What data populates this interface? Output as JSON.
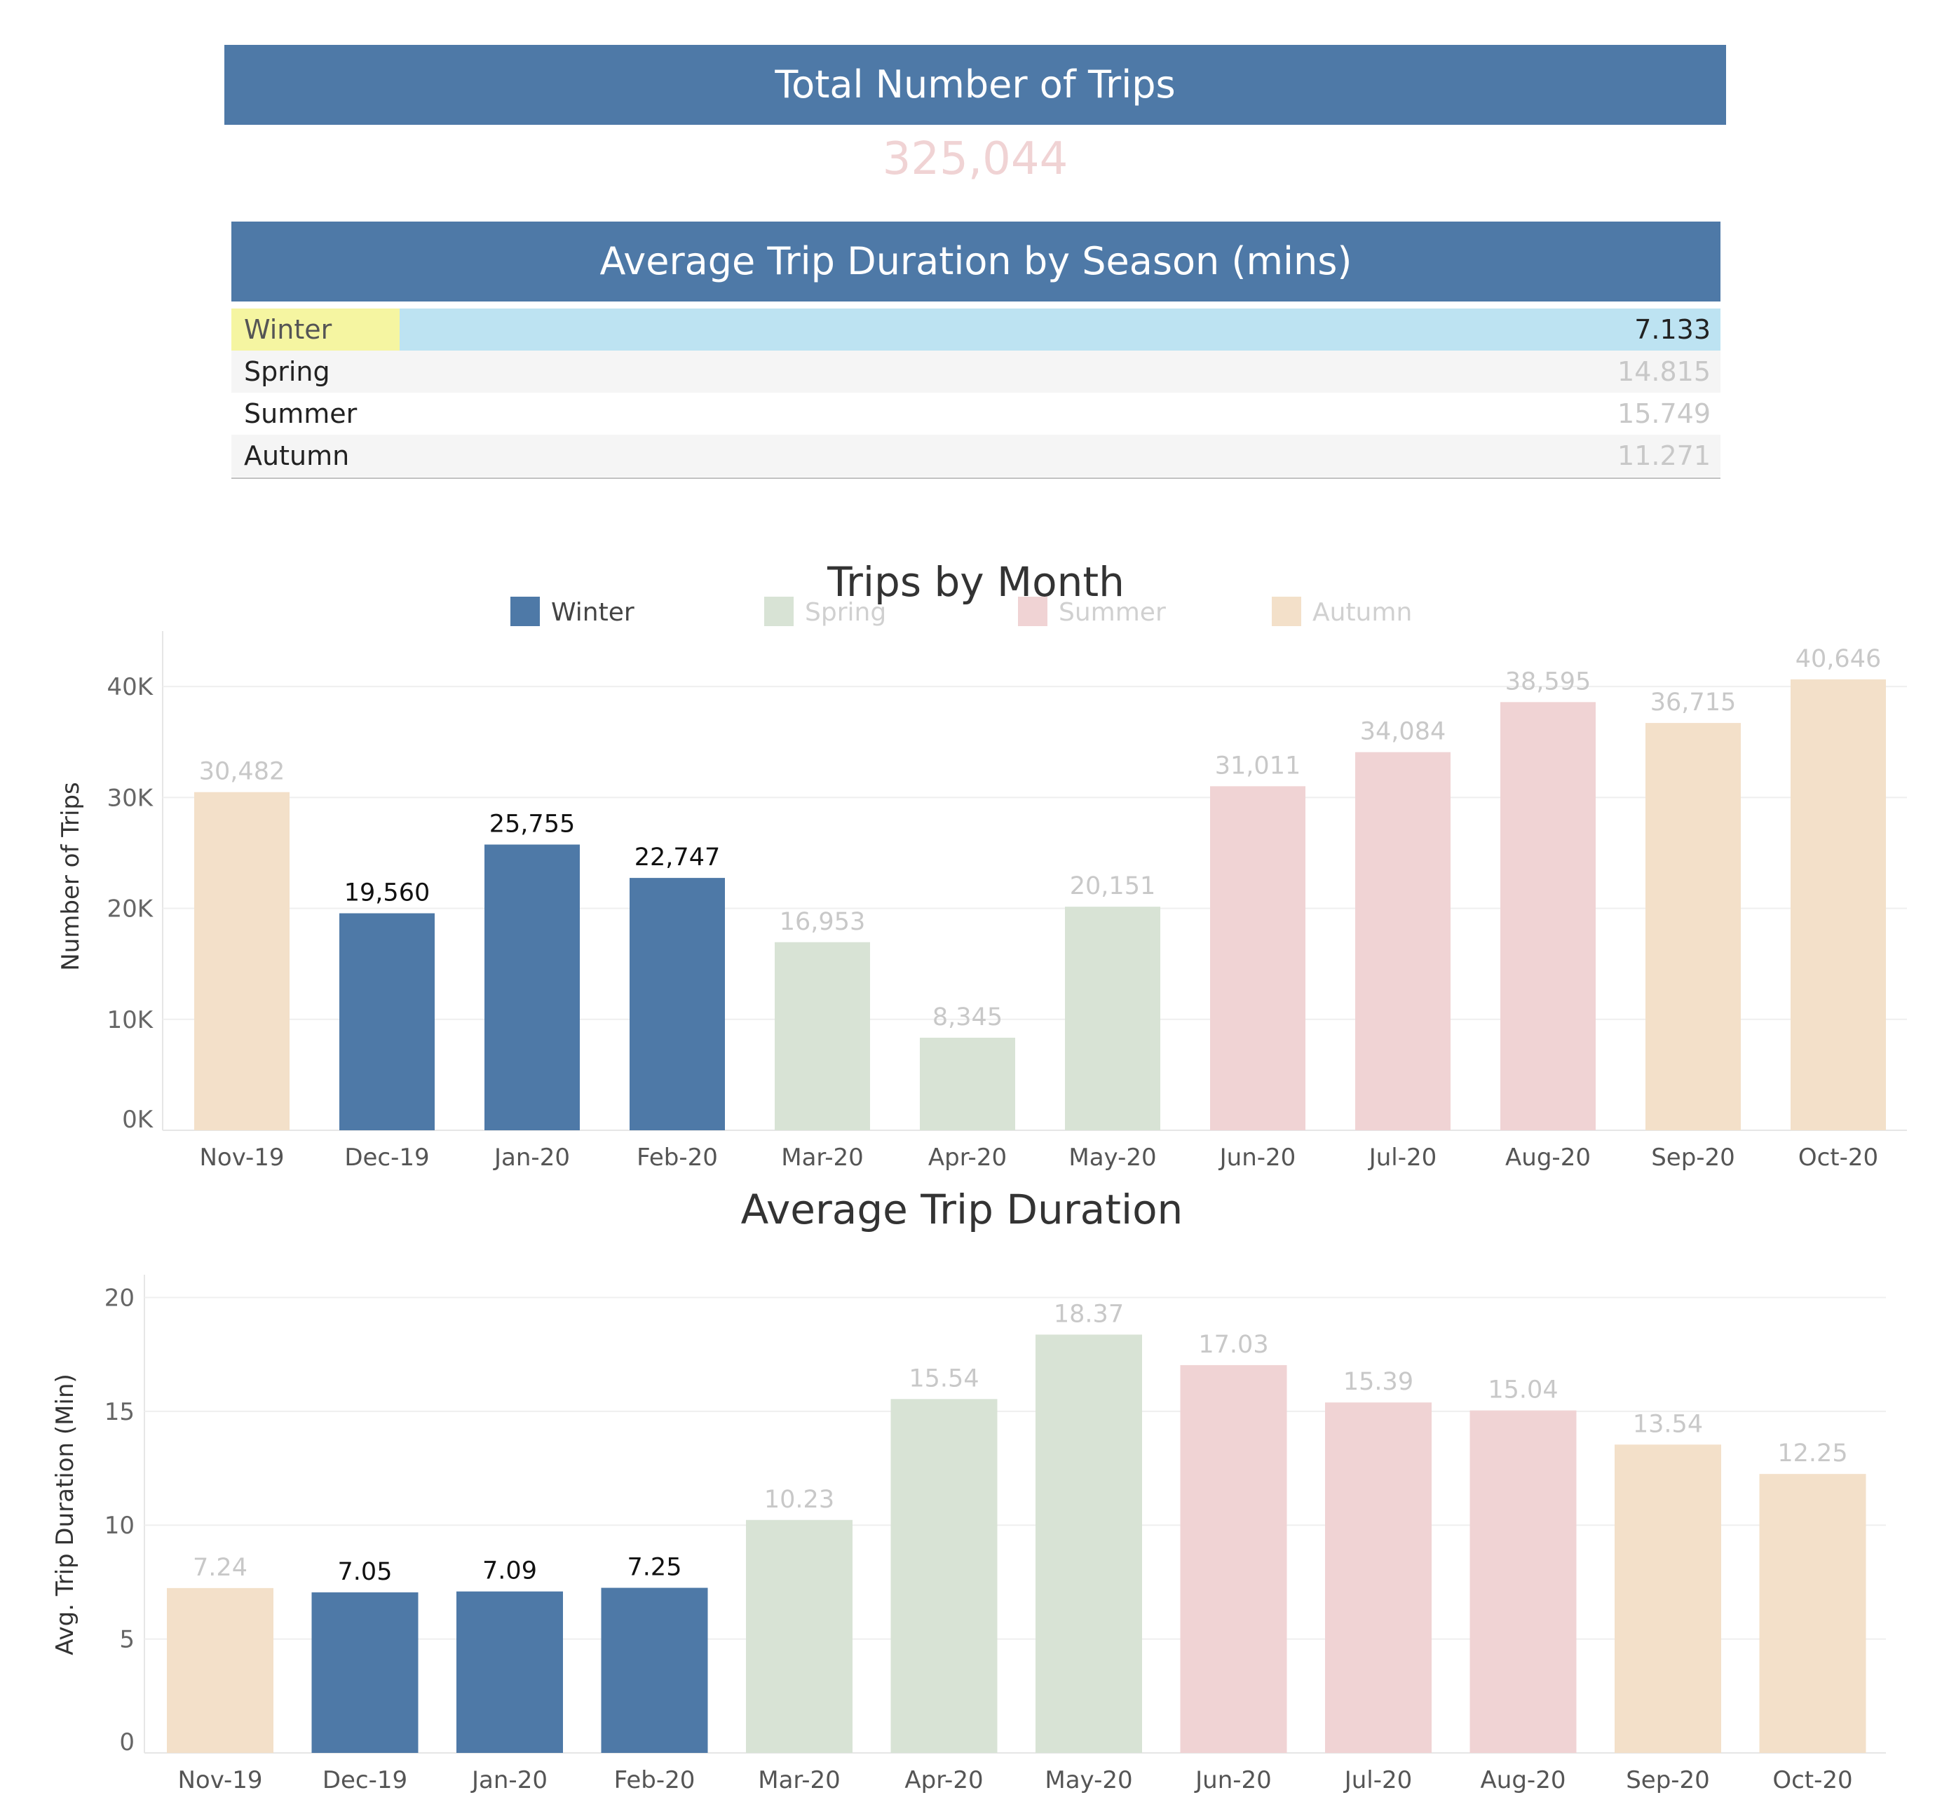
{
  "kpi": {
    "title": "Total Number of Trips",
    "value": "325,044"
  },
  "season_table": {
    "title": "Average Trip Duration by Season (mins)",
    "rows": [
      {
        "season": "Winter",
        "value": "7.133"
      },
      {
        "season": "Spring",
        "value": "14.815"
      },
      {
        "season": "Summer",
        "value": "15.749"
      },
      {
        "season": "Autumn",
        "value": "11.271"
      }
    ]
  },
  "colors": {
    "Winter": "#4e79a7",
    "Spring": "#d8e3d5",
    "Summer": "#f0d3d4",
    "Autumn": "#f3e0c9",
    "highlight_label": "#111111",
    "faded_label": "#c8c8c8"
  },
  "chart_data": [
    {
      "type": "bar",
      "title": "Trips by Month",
      "ylabel": "Number of Trips",
      "ylim": [
        0,
        45000
      ],
      "yticks": [
        "0K",
        "10K",
        "20K",
        "30K",
        "40K"
      ],
      "legend": {
        "placement": "top",
        "entries": [
          "Winter",
          "Spring",
          "Summer",
          "Autumn"
        ]
      },
      "categories": [
        "Nov-19",
        "Dec-19",
        "Jan-20",
        "Feb-20",
        "Mar-20",
        "Apr-20",
        "May-20",
        "Jun-20",
        "Jul-20",
        "Aug-20",
        "Sep-20",
        "Oct-20"
      ],
      "seasons": [
        "Autumn",
        "Winter",
        "Winter",
        "Winter",
        "Spring",
        "Spring",
        "Spring",
        "Summer",
        "Summer",
        "Summer",
        "Autumn",
        "Autumn"
      ],
      "values": [
        30482,
        19560,
        25755,
        22747,
        16953,
        8345,
        20151,
        31011,
        34084,
        38595,
        36715,
        40646
      ],
      "labels": [
        "30,482",
        "19,560",
        "25,755",
        "22,747",
        "16,953",
        "8,345",
        "20,151",
        "31,011",
        "34,084",
        "38,595",
        "36,715",
        "40,646"
      ]
    },
    {
      "type": "bar",
      "title": "Average Trip Duration",
      "ylabel": "Avg. Trip Duration (Min)",
      "ylim": [
        0,
        21
      ],
      "yticks": [
        "0",
        "5",
        "10",
        "15",
        "20"
      ],
      "categories": [
        "Nov-19",
        "Dec-19",
        "Jan-20",
        "Feb-20",
        "Mar-20",
        "Apr-20",
        "May-20",
        "Jun-20",
        "Jul-20",
        "Aug-20",
        "Sep-20",
        "Oct-20"
      ],
      "seasons": [
        "Autumn",
        "Winter",
        "Winter",
        "Winter",
        "Spring",
        "Spring",
        "Spring",
        "Summer",
        "Summer",
        "Summer",
        "Autumn",
        "Autumn"
      ],
      "values": [
        7.24,
        7.05,
        7.09,
        7.25,
        10.23,
        15.54,
        18.37,
        17.03,
        15.39,
        15.04,
        13.54,
        12.25
      ],
      "labels": [
        "7.24",
        "7.05",
        "7.09",
        "7.25",
        "10.23",
        "15.54",
        "18.37",
        "17.03",
        "15.39",
        "15.04",
        "13.54",
        "12.25"
      ]
    }
  ]
}
